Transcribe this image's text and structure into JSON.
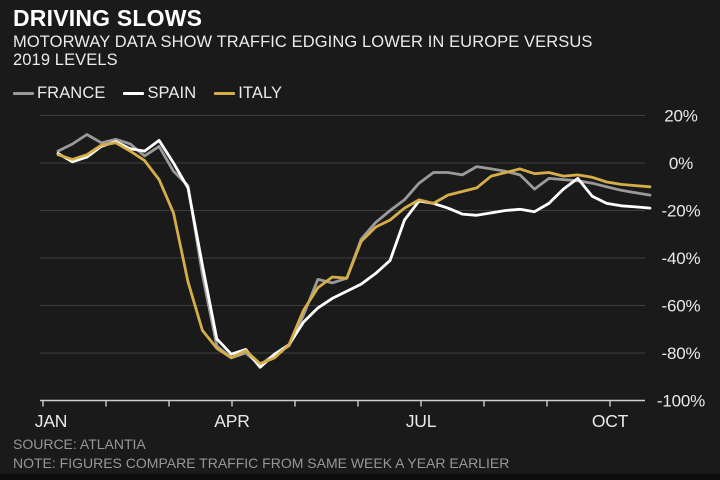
{
  "colors": {
    "background": "#1a1a1a",
    "grid": "#3d3d3d",
    "axis": "#cfcfcf",
    "text": "#e9e9e9",
    "muted": "#979797",
    "france": "#9a9a9a",
    "spain": "#ffffff",
    "italy": "#d5ae49"
  },
  "chart_data": {
    "type": "line",
    "title": "DRIVING SLOWS",
    "subtitle_line1": "MOTORWAY DATA SHOW TRAFFIC EDGING LOWER IN EUROPE VERSUS",
    "subtitle_line2": "2019 LEVELS",
    "source": "SOURCE: ATLANTIA",
    "note": "NOTE: FIGURES COMPARE TRAFFIC FROM SAME WEEK A YEAR EARLIER",
    "x_unit": "weekly, January to mid-October",
    "x_tick_labels": [
      "JAN",
      "APR",
      "JUL",
      "OCT"
    ],
    "y_ticks": [
      20,
      0,
      -20,
      -40,
      -60,
      -80,
      -100
    ],
    "y_tick_labels": [
      "20%",
      "0%",
      "-20%",
      "-40%",
      "-60%",
      "-80%",
      "-100%"
    ],
    "ylim": [
      -100,
      20
    ],
    "legend_position": "top-left",
    "grid": true,
    "series": [
      {
        "name": "FRANCE",
        "color": "#9a9a9a",
        "values": [
          5,
          8,
          12,
          8.5,
          10,
          8,
          3,
          7,
          -3.5,
          -9.5,
          -47,
          -77,
          -82,
          -80,
          -85,
          -80.5,
          -77,
          -64,
          -49,
          -50.5,
          -48.5,
          -32,
          -25,
          -20,
          -15.5,
          -8.5,
          -4,
          -4,
          -5,
          -1.5,
          -2.5,
          -3.5,
          -5,
          -11,
          -6.5,
          -7,
          -7.5,
          -8.5,
          -10,
          -11.5,
          -12.5,
          -13.5
        ]
      },
      {
        "name": "SPAIN",
        "color": "#ffffff",
        "values": [
          4,
          0.5,
          2.5,
          7,
          9,
          6,
          5,
          9.5,
          0,
          -10.5,
          -43,
          -74,
          -80.5,
          -78.5,
          -86,
          -80.5,
          -76.5,
          -67,
          -61,
          -57,
          -54,
          -51,
          -46.5,
          -41,
          -24,
          -16,
          -17,
          -19,
          -21.5,
          -22,
          -21,
          -20,
          -19.5,
          -20.5,
          -17,
          -11,
          -6.5,
          -14,
          -17,
          -18,
          -18.5,
          -19
        ]
      },
      {
        "name": "ITALY",
        "color": "#d5ae49",
        "values": [
          3.5,
          1.5,
          3.5,
          7.5,
          8.5,
          5,
          1,
          -7,
          -21,
          -50,
          -70.5,
          -78,
          -82,
          -79,
          -84.5,
          -82,
          -76.5,
          -62,
          -52.5,
          -48,
          -48.5,
          -33,
          -27,
          -24,
          -19,
          -15.5,
          -17,
          -13.5,
          -12,
          -10.5,
          -5.5,
          -4,
          -2.5,
          -4.5,
          -4,
          -5.5,
          -5,
          -6,
          -8,
          -9,
          -9.5,
          -10
        ]
      }
    ]
  }
}
